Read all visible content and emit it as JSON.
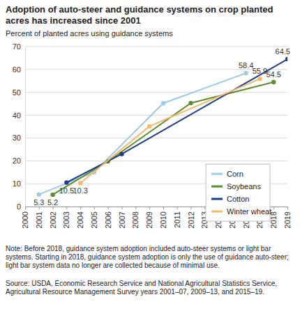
{
  "chart_data": {
    "type": "line",
    "title": "Adoption of auto-steer and guidance systems on crop planted acres has increased since 2001",
    "subtitle": "Percent of planted acres using guidance systems",
    "note": "Note: Before 2018, guidance system adoption included auto-steer systems or light bar systems. Starting in 2018, guidance system adoption is only the use of guidance auto-steer; light bar system data no longer are collected because of minimal use.",
    "source": "Source: USDA, Economic Research Service and National Agricultural Statistics Service, Agricultural Resource Management Survey years 2001–07, 2009–13, and 2015–19.",
    "xlim": [
      2000,
      2019
    ],
    "xticks": [
      2000,
      2001,
      2002,
      2003,
      2004,
      2005,
      2006,
      2007,
      2008,
      2009,
      2010,
      2011,
      2012,
      2013,
      2014,
      2015,
      2016,
      2017,
      2018,
      2019
    ],
    "ylim": [
      0,
      70
    ],
    "yticks": [
      0,
      10,
      20,
      30,
      40,
      50,
      60,
      70
    ],
    "grid": true,
    "legend": "right",
    "marker": "circle",
    "series": [
      {
        "name": "Corn",
        "color": "#9ccbea",
        "x": [
          2001,
          2005,
          2010,
          2016
        ],
        "values": [
          5.3,
          15,
          45.2,
          58.4
        ],
        "value_labels": [
          "5.3",
          null,
          null,
          "58.4"
        ]
      },
      {
        "name": "Soybeans",
        "color": "#5f8c2c",
        "x": [
          2002,
          2006,
          2012,
          2018
        ],
        "values": [
          5.2,
          19.8,
          45.3,
          54.5
        ],
        "value_labels": [
          "5.2",
          null,
          null,
          "54.5"
        ]
      },
      {
        "name": "Cotton",
        "color": "#1d3c8c",
        "x": [
          2003,
          2007,
          2019
        ],
        "values": [
          10.5,
          23,
          64.5
        ],
        "value_labels": [
          "10.5",
          null,
          "64.5"
        ]
      },
      {
        "name": "Winter wheat",
        "color": "#f6b96b",
        "x": [
          2004,
          2009,
          2017
        ],
        "values": [
          10.3,
          35.1,
          55.9
        ],
        "value_labels": [
          "10.3",
          null,
          "55.9"
        ]
      }
    ]
  }
}
